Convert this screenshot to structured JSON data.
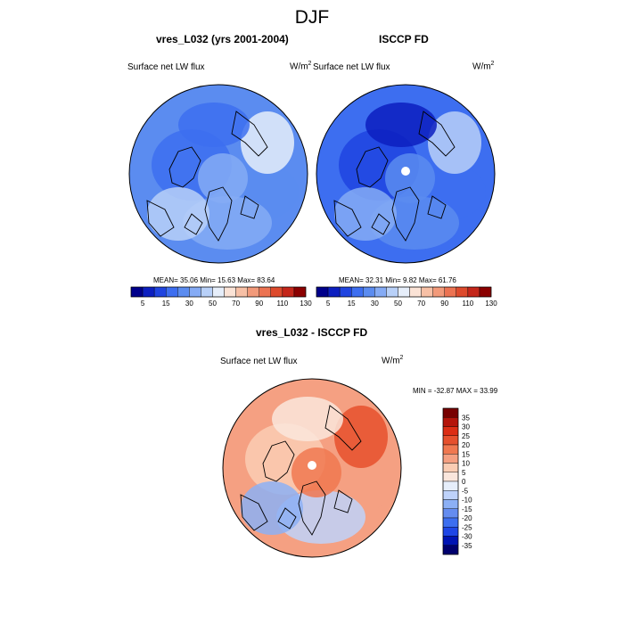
{
  "figure": {
    "title": "DJF"
  },
  "colors": {
    "abs_palette": [
      "#00008b",
      "#0c1fc0",
      "#1f44e0",
      "#3d6ef0",
      "#5b8cf0",
      "#85abf5",
      "#b8d0f8",
      "#e6eefa",
      "#fbe3d6",
      "#f7c0a6",
      "#f29a7a",
      "#ec7352",
      "#dd4a2c",
      "#c4261a",
      "#8b0000"
    ],
    "diff_palette": [
      "#00006e",
      "#0014b4",
      "#1e46e6",
      "#3c6ef0",
      "#648cf0",
      "#8cb0f5",
      "#bed2fa",
      "#e6eefa",
      "#fae6dc",
      "#facdb4",
      "#f5a082",
      "#f07850",
      "#e6502d",
      "#dc2d14",
      "#b4140a",
      "#780000"
    ],
    "coast": "#000000",
    "pole_mask": "#ffffff"
  },
  "panels": [
    {
      "title": "vres_L032 (yrs 2001-2004)",
      "var_label": "Surface net LW flux",
      "units": "W/m",
      "units_sup": "2",
      "stats": "MEAN=  35.06  Min=  15.63  Max=  83.64",
      "field_colors": [
        "#5b8cf0",
        "#3d6ef0",
        "#85abf5",
        "#b8d0f8",
        "#e6eefa",
        "#3d6ef0",
        "#85abf5"
      ]
    },
    {
      "title": "ISCCP FD",
      "var_label": "Surface net LW flux",
      "units": "W/m",
      "units_sup": "2",
      "stats": "MEAN=  32.31  Min=   9.82  Max=  61.76",
      "field_colors": [
        "#3d6ef0",
        "#1f44e0",
        "#5b8cf0",
        "#85abf5",
        "#b8d0f8",
        "#0c1fc0",
        "#5b8cf0"
      ]
    },
    {
      "title": "vres_L032 - ISCCP FD",
      "var_label": "Surface net LW flux",
      "units": "W/m",
      "units_sup": "2",
      "stats": "MIN = -32.87 MAX =  33.99",
      "field_colors": [
        "#f5a082",
        "#facdb4",
        "#bed2fa",
        "#8cb0f5",
        "#e6502d",
        "#fae6dc",
        "#f07850"
      ]
    }
  ],
  "chart_data": [
    {
      "type": "heatmap",
      "projection": "north-polar-stereographic",
      "title": "vres_L032 (yrs 2001-2004)",
      "variable": "Surface net LW flux",
      "units": "W/m2",
      "mean": 35.06,
      "min": 15.63,
      "max": 83.64,
      "colorbar_levels": [
        5,
        15,
        30,
        50,
        70,
        90,
        110,
        130
      ]
    },
    {
      "type": "heatmap",
      "projection": "north-polar-stereographic",
      "title": "ISCCP FD",
      "variable": "Surface net LW flux",
      "units": "W/m2",
      "mean": 32.31,
      "min": 9.82,
      "max": 61.76,
      "colorbar_levels": [
        5,
        15,
        30,
        50,
        70,
        90,
        110,
        130
      ]
    },
    {
      "type": "heatmap",
      "projection": "north-polar-stereographic",
      "title": "vres_L032 - ISCCP FD",
      "variable": "Surface net LW flux",
      "units": "W/m2",
      "min": -32.87,
      "max": 33.99,
      "colorbar_levels": [
        35,
        30,
        25,
        20,
        15,
        10,
        5,
        0,
        -5,
        -10,
        -15,
        -20,
        -25,
        -30,
        -35
      ]
    }
  ],
  "colorbars": {
    "abs_ticks": [
      "5",
      "15",
      "30",
      "50",
      "70",
      "90",
      "110",
      "130"
    ],
    "diff_ticks": [
      "35",
      "30",
      "25",
      "20",
      "15",
      "10",
      "5",
      "0",
      "-5",
      "-10",
      "-15",
      "-20",
      "-25",
      "-30",
      "-35"
    ]
  }
}
